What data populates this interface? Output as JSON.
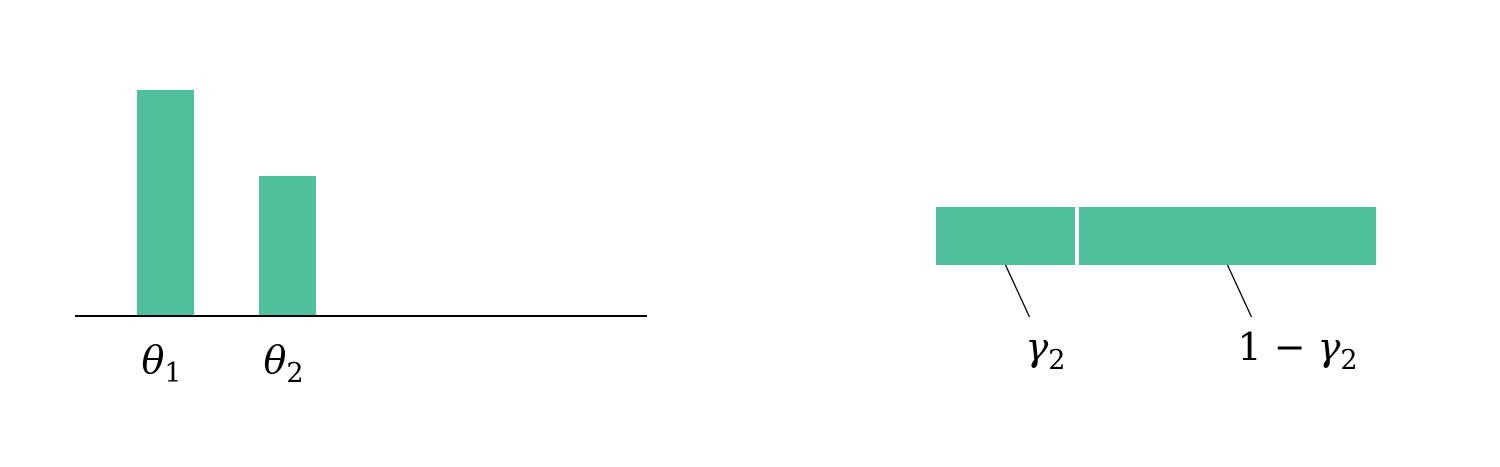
{
  "colors": {
    "bar_fill": "#4fbf9e",
    "axis": "#000000",
    "leader": "#000000"
  },
  "stick_breaking": {
    "bars": [
      {
        "symbol": "θ",
        "subscript": "1",
        "value": 1.0
      },
      {
        "symbol": "θ",
        "subscript": "2",
        "value": 0.62
      }
    ]
  },
  "stick": {
    "segments": [
      {
        "fraction": 0.32,
        "label_main": "γ",
        "label_sub": "2"
      },
      {
        "fraction": 0.68,
        "label_prefix": "1 − ",
        "label_main": "γ",
        "label_sub": "2"
      }
    ]
  }
}
